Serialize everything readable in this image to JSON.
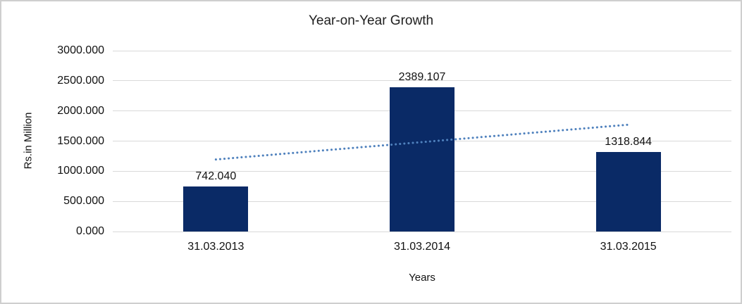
{
  "chart_data": {
    "type": "bar",
    "title": "Year-on-Year Growth",
    "categories": [
      "31.03.2013",
      "31.03.2014",
      "31.03.2015"
    ],
    "values": [
      742.04,
      2389.107,
      1318.844
    ],
    "data_labels": [
      "742.040",
      "2389.107",
      "1318.844"
    ],
    "xlabel": "Years",
    "ylabel": "Rs.in Million",
    "ylim": [
      0,
      3000
    ],
    "ytick_step": 500,
    "ytick_labels": [
      "0.000",
      "500.000",
      "1000.000",
      "1500.000",
      "2000.000",
      "2500.000",
      "3000.000"
    ],
    "grid": true,
    "legend": "none",
    "trendline": {
      "type": "linear",
      "style": "dotted",
      "start_value": 1195,
      "end_value": 1772
    },
    "colors": {
      "bar": "#0a2a66",
      "trendline": "#4f81bd",
      "gridline": "#d9d9d9",
      "frame_border": "#cfcfcf",
      "text": "#1a1a1a"
    }
  }
}
